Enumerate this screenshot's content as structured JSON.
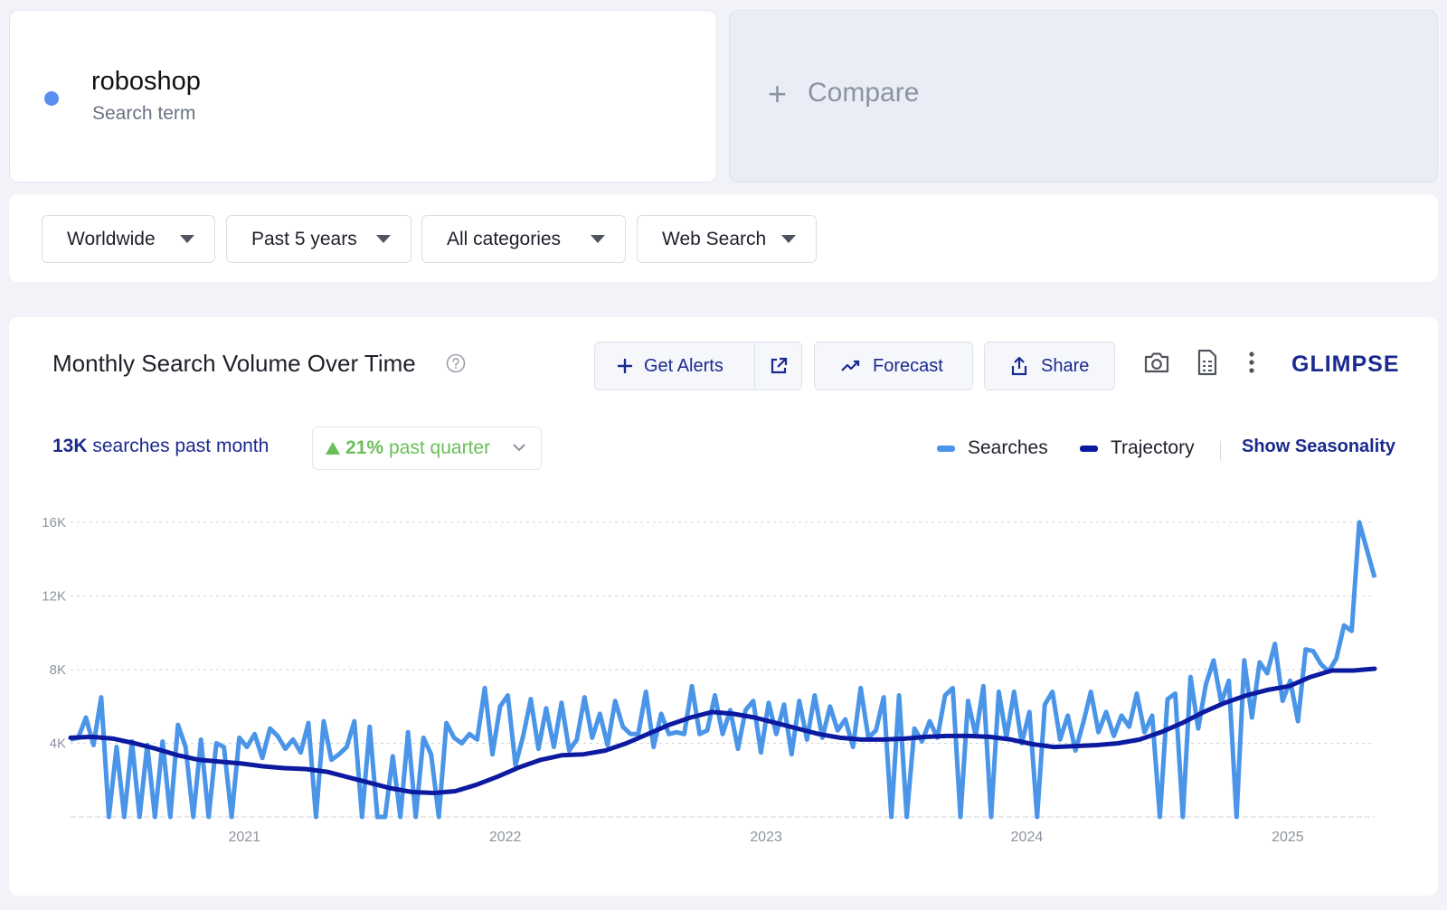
{
  "term": {
    "name": "roboshop",
    "type": "Search term",
    "dot_color": "#5b8def"
  },
  "compare": {
    "label": "Compare"
  },
  "filters": {
    "location": "Worldwide",
    "time_range": "Past 5 years",
    "category": "All categories",
    "source": "Web Search"
  },
  "chart_card": {
    "title": "Monthly Search Volume Over Time",
    "buttons": {
      "alerts": "Get Alerts",
      "forecast": "Forecast",
      "share": "Share"
    },
    "brand": "GLIMPSE",
    "stat_month_value": "13K",
    "stat_month_text": "searches past month",
    "stat_quarter_value": "21%",
    "stat_quarter_text": "past quarter",
    "legend": {
      "searches": "Searches",
      "trajectory": "Trajectory",
      "seasonality": "Show Seasonality"
    }
  },
  "chart_data": {
    "type": "line",
    "title": "Monthly Search Volume Over Time",
    "xlabel": "",
    "ylabel": "",
    "x_ticks": [
      "2021",
      "2022",
      "2023",
      "2024",
      "2025"
    ],
    "y_ticks": [
      "16K",
      "12K",
      "8K",
      "4K"
    ],
    "ylim": [
      0,
      16000
    ],
    "x_range": [
      "2020-05",
      "2025-05"
    ],
    "grid": true,
    "legend_position": "top-right",
    "colors": {
      "searches": "#4a95e8",
      "trajectory": "#0c1aa0"
    },
    "series": [
      {
        "name": "Searches",
        "color": "#4a95e8",
        "values": [
          4200,
          4300,
          5400,
          3900,
          6500,
          0,
          3800,
          0,
          4100,
          0,
          3900,
          0,
          4100,
          0,
          5000,
          3800,
          0,
          4200,
          0,
          4000,
          3800,
          0,
          4300,
          3800,
          4500,
          3200,
          4800,
          4400,
          3700,
          4200,
          3500,
          5100,
          0,
          5200,
          3100,
          3400,
          3800,
          5200,
          0,
          4900,
          0,
          0,
          3300,
          0,
          4600,
          0,
          4300,
          3400,
          0,
          5100,
          4300,
          4000,
          4500,
          4200,
          7000,
          3400,
          6000,
          6600,
          2800,
          4400,
          6400,
          3700,
          5900,
          3800,
          6200,
          3600,
          4200,
          6500,
          4300,
          5600,
          3900,
          6300,
          4900,
          4500,
          4500,
          6800,
          3800,
          5600,
          4500,
          4600,
          4500,
          7100,
          4500,
          4700,
          6600,
          4500,
          5800,
          3700,
          5800,
          6300,
          3500,
          6200,
          4500,
          6100,
          3400,
          6300,
          4200,
          6600,
          4300,
          6000,
          4700,
          5300,
          3800,
          7000,
          4300,
          4700,
          6500,
          0,
          6600,
          0,
          4800,
          4100,
          5200,
          4300,
          6600,
          7000,
          0,
          6300,
          4400,
          7100,
          0,
          6800,
          4300,
          6800,
          4000,
          5700,
          0,
          6100,
          6800,
          4200,
          5500,
          3600,
          5100,
          6800,
          4600,
          5700,
          4400,
          5500,
          4900,
          6700,
          4600,
          5500,
          0,
          6400,
          6700,
          0,
          7600,
          4800,
          7200,
          8500,
          6200,
          7400,
          0,
          8500,
          5400,
          8400,
          7800,
          9400,
          6300,
          7400,
          5200,
          9100,
          9000,
          8300,
          7900,
          8600,
          10400,
          10100,
          16000,
          14500,
          13000
        ],
        "note": "monthly search counts read off the chart (approximate)"
      },
      {
        "name": "Trajectory",
        "color": "#0c1aa0",
        "values": [
          4300,
          4350,
          4250,
          4000,
          3700,
          3350,
          3100,
          3000,
          2900,
          2750,
          2650,
          2600,
          2450,
          2150,
          1850,
          1550,
          1350,
          1300,
          1400,
          1750,
          2200,
          2700,
          3100,
          3350,
          3400,
          3600,
          4000,
          4500,
          5000,
          5400,
          5700,
          5600,
          5400,
          5100,
          4800,
          4500,
          4300,
          4200,
          4200,
          4250,
          4350,
          4400,
          4400,
          4350,
          4200,
          3950,
          3800,
          3850,
          3900,
          4000,
          4200,
          4600,
          5100,
          5700,
          6200,
          6600,
          6900,
          7100,
          7600,
          7950,
          7950,
          8050
        ]
      }
    ]
  }
}
